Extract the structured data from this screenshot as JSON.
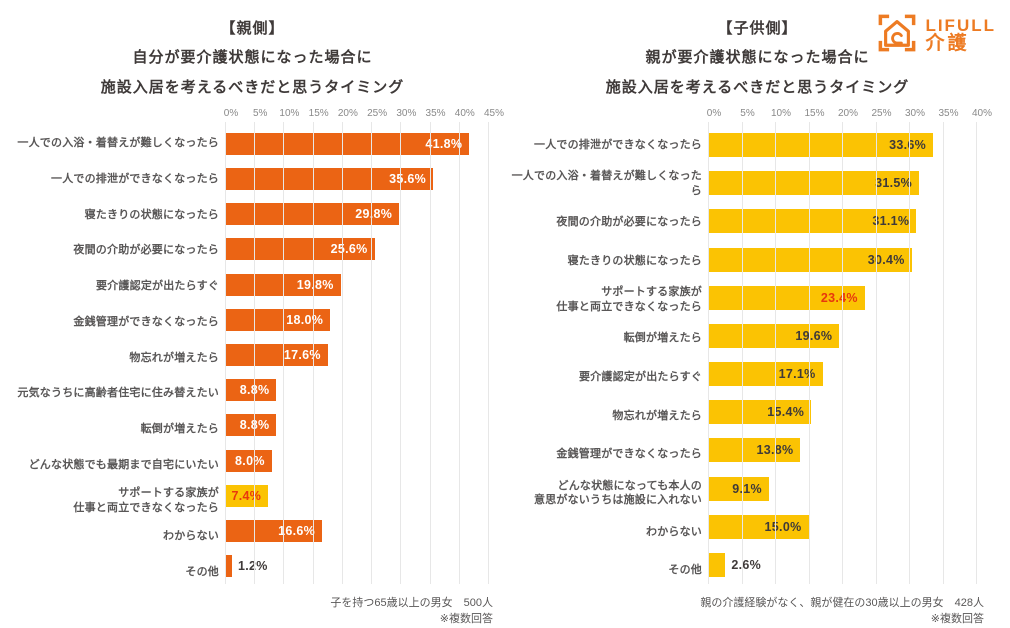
{
  "logo": {
    "brand": "LIFULL",
    "service": "介護",
    "color": "#ED7B23"
  },
  "chart_data": [
    {
      "type": "bar",
      "panel": "parent-side",
      "title_tag": "【親側】",
      "title_line1": "自分が要介護状態になった場合に",
      "title_line2": "施設入居を考えるべきだと思うタイミング",
      "xlabel": "",
      "ylabel": "",
      "xlim": [
        0,
        45
      ],
      "ticks": [
        0,
        5,
        10,
        15,
        20,
        25,
        30,
        35,
        40,
        45
      ],
      "grid": true,
      "bar_color": "#EB6414",
      "value_color_inside": "#FFFFFF",
      "value_color_outside": "#3F3A39",
      "highlight_bar_color": "#FBC303",
      "highlight_value_color": "#E8380D",
      "footnote": "子を持つ65歳以上の男女　500人",
      "footnote2": "※複数回答",
      "rows": [
        {
          "label": [
            "一人での入浴・着替えが難しくなったら"
          ],
          "value": 41.8,
          "display": "41.8%",
          "inside": true
        },
        {
          "label": [
            "一人での排泄ができなくなったら"
          ],
          "value": 35.6,
          "display": "35.6%",
          "inside": true
        },
        {
          "label": [
            "寝たきりの状態になったら"
          ],
          "value": 29.8,
          "display": "29.8%",
          "inside": true
        },
        {
          "label": [
            "夜間の介助が必要になったら"
          ],
          "value": 25.6,
          "display": "25.6%",
          "inside": true
        },
        {
          "label": [
            "要介護認定が出たらすぐ"
          ],
          "value": 19.8,
          "display": "19.8%",
          "inside": true
        },
        {
          "label": [
            "金銭管理ができなくなったら"
          ],
          "value": 18.0,
          "display": "18.0%",
          "inside": true
        },
        {
          "label": [
            "物忘れが増えたら"
          ],
          "value": 17.6,
          "display": "17.6%",
          "inside": true
        },
        {
          "label": [
            "元気なうちに高齢者住宅に住み替えたい"
          ],
          "value": 8.8,
          "display": "8.8%",
          "inside": true
        },
        {
          "label": [
            "転倒が増えたら"
          ],
          "value": 8.8,
          "display": "8.8%",
          "inside": true
        },
        {
          "label": [
            "どんな状態でも最期まで自宅にいたい"
          ],
          "value": 8.0,
          "display": "8.0%",
          "inside": true
        },
        {
          "label": [
            "サポートする家族が",
            "仕事と両立できなくなったら"
          ],
          "value": 7.4,
          "display": "7.4%",
          "inside": true,
          "highlight": true
        },
        {
          "label": [
            "わからない"
          ],
          "value": 16.6,
          "display": "16.6%",
          "inside": true
        },
        {
          "label": [
            "その他"
          ],
          "value": 1.2,
          "display": "1.2%",
          "inside": false
        }
      ]
    },
    {
      "type": "bar",
      "panel": "child-side",
      "title_tag": "【子供側】",
      "title_line1": "親が要介護状態になった場合に",
      "title_line2": "施設入居を考えるべきだと思うタイミング",
      "xlabel": "",
      "ylabel": "",
      "xlim": [
        0,
        40
      ],
      "ticks": [
        0,
        5,
        10,
        15,
        20,
        25,
        30,
        35,
        40
      ],
      "grid": true,
      "bar_color": "#FBC303",
      "value_color_inside": "#3F3A39",
      "value_color_outside": "#3F3A39",
      "highlight_bar_color": "#FBC303",
      "highlight_value_color": "#E8380D",
      "footnote": "親の介護経験がなく、親が健在の30歳以上の男女　428人",
      "footnote2": "※複数回答",
      "rows": [
        {
          "label": [
            "一人での排泄ができなくなったら"
          ],
          "value": 33.6,
          "display": "33.6%",
          "inside": true
        },
        {
          "label": [
            "一人での入浴・着替えが難しくなったら"
          ],
          "value": 31.5,
          "display": "31.5%",
          "inside": true
        },
        {
          "label": [
            "夜間の介助が必要になったら"
          ],
          "value": 31.1,
          "display": "31.1%",
          "inside": true
        },
        {
          "label": [
            "寝たきりの状態になったら"
          ],
          "value": 30.4,
          "display": "30.4%",
          "inside": true
        },
        {
          "label": [
            "サポートする家族が",
            "仕事と両立できなくなったら"
          ],
          "value": 23.4,
          "display": "23.4%",
          "inside": true,
          "highlight": true
        },
        {
          "label": [
            "転倒が増えたら"
          ],
          "value": 19.6,
          "display": "19.6%",
          "inside": true
        },
        {
          "label": [
            "要介護認定が出たらすぐ"
          ],
          "value": 17.1,
          "display": "17.1%",
          "inside": true
        },
        {
          "label": [
            "物忘れが増えたら"
          ],
          "value": 15.4,
          "display": "15.4%",
          "inside": true
        },
        {
          "label": [
            "金銭管理ができなくなったら"
          ],
          "value": 13.8,
          "display": "13.8%",
          "inside": true
        },
        {
          "label": [
            "どんな状態になっても本人の",
            "意思がないうちは施設に入れない"
          ],
          "value": 9.1,
          "display": "9.1%",
          "inside": true
        },
        {
          "label": [
            "わからない"
          ],
          "value": 15.0,
          "display": "15.0%",
          "inside": true
        },
        {
          "label": [
            "その他"
          ],
          "value": 2.6,
          "display": "2.6%",
          "inside": false
        }
      ]
    }
  ]
}
